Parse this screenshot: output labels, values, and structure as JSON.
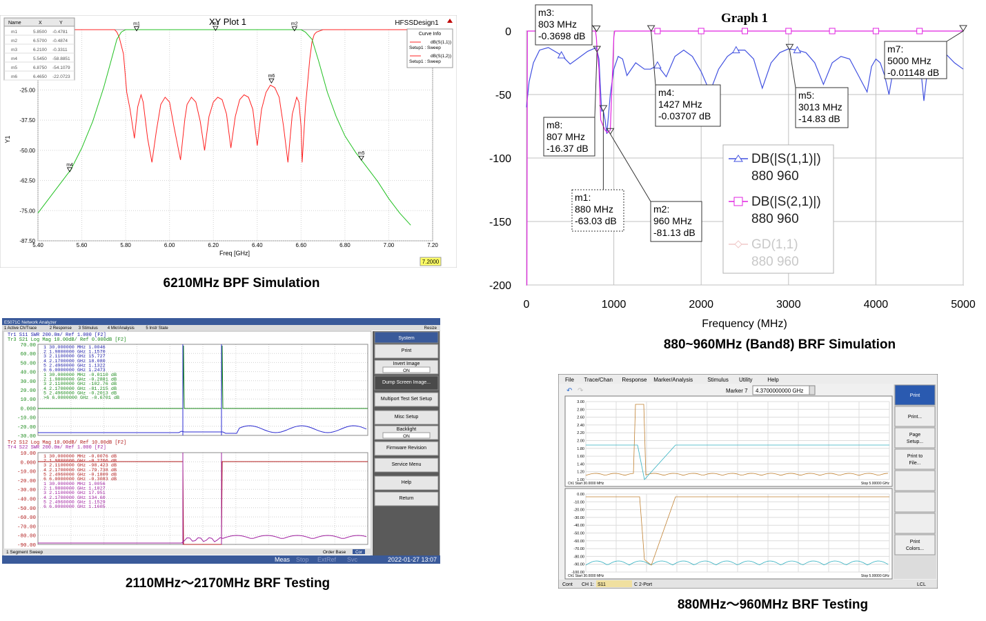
{
  "captions": {
    "p1": "6210MHz BPF Simulation",
    "p2": "880~960MHz (Band8) BRF Simulation",
    "p3": "2110MHz～2170MHz BRF Testing",
    "p4": "880MHz～960MHz BRF Testing"
  },
  "chart_data": [
    {
      "type": "line",
      "title": "XY Plot 1",
      "design": "HFSSDesign1",
      "xlabel": "Freq [GHz]",
      "ylabel": "Y1",
      "xlim": [
        5.4,
        7.2
      ],
      "ylim": [
        -87.5,
        0
      ],
      "xticks": [
        "5.40",
        "5.60",
        "5.80",
        "6.00",
        "6.20",
        "6.40",
        "6.60",
        "6.80",
        "7.00",
        "7.20"
      ],
      "yticks": [
        "-25.00",
        "-37.50",
        "-50.00",
        "-62.50",
        "-75.00",
        "-87.50"
      ],
      "cursor_value": "7.2000",
      "legend_title": "Curve Info",
      "series": [
        {
          "name": "dB(S(1,1))",
          "setup": "Setup1 : Sweep",
          "color": "#ff2020",
          "x": [
            5.4,
            5.75,
            5.76,
            5.77,
            5.79,
            5.805,
            5.82,
            5.84,
            5.855,
            5.87,
            5.88,
            5.9,
            5.92,
            5.94,
            5.96,
            5.98,
            6.0,
            6.02,
            6.05,
            6.07,
            6.08,
            6.1,
            6.12,
            6.14,
            6.16,
            6.18,
            6.2,
            6.22,
            6.24,
            6.26,
            6.28,
            6.3,
            6.32,
            6.34,
            6.36,
            6.38,
            6.4,
            6.42,
            6.44,
            6.46,
            6.48,
            6.5,
            6.52,
            6.54,
            6.56,
            6.58,
            6.59,
            6.6,
            6.605,
            6.62,
            6.64,
            6.65,
            6.66,
            6.67,
            6.7,
            7.1
          ],
          "y": [
            0,
            0,
            -1,
            -3,
            -10,
            -26,
            -33,
            -45,
            -32,
            -27,
            -30,
            -45,
            -55,
            -42,
            -31,
            -28,
            -30,
            -40,
            -54,
            -37,
            -31,
            -28,
            -30,
            -38,
            -50,
            -36,
            -30,
            -28,
            -29,
            -35,
            -49,
            -36,
            -29,
            -27,
            -28,
            -33,
            -48,
            -33,
            -26,
            -23,
            -24,
            -28,
            -40,
            -55,
            -35,
            -28,
            -30,
            -40,
            -55,
            -32,
            -12,
            -5,
            -2,
            -1,
            0,
            0
          ]
        },
        {
          "name": "dB(S(1,2))",
          "setup": "Setup1 : Sweep",
          "color": "#20c020",
          "x": [
            5.4,
            5.45,
            5.5,
            5.55,
            5.6,
            5.65,
            5.7,
            5.73,
            5.76,
            5.78,
            5.8,
            6.6,
            6.62,
            6.65,
            6.68,
            6.72,
            6.76,
            6.8,
            6.85,
            6.9,
            6.95,
            7.0,
            7.05,
            7.1
          ],
          "y": [
            -76,
            -70,
            -64,
            -58,
            -49,
            -38,
            -24,
            -14,
            -4,
            -1,
            0,
            0,
            -1,
            -4,
            -13,
            -26,
            -36,
            -44,
            -51,
            -57,
            -63,
            -70,
            -76,
            -81
          ]
        }
      ],
      "markers": [
        {
          "name": "m1",
          "x": "5.8500",
          "y": "-0.4781",
          "xv": 5.85,
          "yv": -0.48
        },
        {
          "name": "m2",
          "x": "6.5700",
          "y": "-0.4874",
          "xv": 6.57,
          "yv": -0.49
        },
        {
          "name": "m3",
          "x": "6.2100",
          "y": "-0.3311",
          "xv": 6.21,
          "yv": -0.33
        },
        {
          "name": "m4",
          "x": "5.5450",
          "y": "-58.8851",
          "xv": 5.545,
          "yv": -58.89
        },
        {
          "name": "m5",
          "x": "6.8750",
          "y": "-54.1079",
          "xv": 6.875,
          "yv": -54.11
        },
        {
          "name": "m6",
          "x": "6.4650",
          "y": "-22.0723",
          "xv": 6.465,
          "yv": -22.07
        }
      ],
      "marker_table_headers": [
        "Name",
        "X",
        "Y"
      ]
    },
    {
      "type": "line",
      "title": "Graph 1",
      "xlabel": "Frequency (MHz)",
      "ylabel": "",
      "xlim": [
        0,
        5000
      ],
      "ylim": [
        -200,
        0
      ],
      "xticks": [
        "0",
        "1000",
        "2000",
        "3000",
        "4000",
        "5000"
      ],
      "yticks": [
        "0",
        "-50",
        "-100",
        "-150",
        "-200"
      ],
      "series": [
        {
          "name": "DB(|S(1,1)|)",
          "sub": "880 960",
          "color": "#4050e0",
          "x": [
            0,
            30,
            80,
            150,
            250,
            400,
            500,
            600,
            700,
            800,
            830,
            860,
            880,
            900,
            920,
            960,
            1000,
            1050,
            1100,
            1150,
            1250,
            1350,
            1420,
            1500,
            1600,
            1700,
            1800,
            1900,
            2000,
            2100,
            2200,
            2300,
            2400,
            2500,
            2600,
            2700,
            2800,
            2900,
            3000,
            3100,
            3200,
            3300,
            3400,
            3500,
            3600,
            3700,
            3800,
            3900,
            3950,
            4000,
            4050,
            4100,
            4150,
            4200,
            4300,
            4400,
            4500,
            4550,
            4600,
            4700,
            4800,
            4900,
            5000
          ],
          "y": [
            -60,
            -40,
            -25,
            -15,
            -13,
            -19,
            -26,
            -21,
            -16,
            -13,
            -22,
            -63,
            -63,
            -70,
            -81,
            -50,
            -30,
            -20,
            -22,
            -35,
            -25,
            -30,
            -30,
            -27,
            -36,
            -20,
            -15,
            -20,
            -32,
            -48,
            -30,
            -20,
            -15,
            -15,
            -22,
            -45,
            -25,
            -17,
            -14,
            -15,
            -17,
            -25,
            -42,
            -25,
            -20,
            -22,
            -35,
            -48,
            -28,
            -22,
            -25,
            -35,
            -50,
            -30,
            -20,
            -17,
            -20,
            -55,
            -25,
            -15,
            -18,
            -25,
            -30
          ]
        },
        {
          "name": "DB(|S(2,1)|)",
          "sub": "880 960",
          "color": "#e020e0",
          "x": [
            0,
            5,
            10,
            790,
            800,
            810,
            830,
            850,
            880,
            900,
            930,
            960,
            1000,
            1010,
            5000
          ],
          "y": [
            -200,
            -200,
            0,
            0,
            -5,
            -16,
            -30,
            -70,
            -75,
            -78,
            -80,
            -78,
            -5,
            0,
            0
          ]
        },
        {
          "name": "GD(1,1)",
          "sub": "880 960",
          "color": "#f0c8c8",
          "x": [],
          "y": []
        }
      ],
      "markers": [
        {
          "name": "m3",
          "lines": [
            "m3:",
            "803 MHz",
            "-0.3698 dB"
          ],
          "xv": 803,
          "yv": -0.37
        },
        {
          "name": "m8",
          "lines": [
            "m8:",
            "807 MHz",
            "-16.37 dB"
          ],
          "xv": 807,
          "yv": -16.37
        },
        {
          "name": "m1",
          "lines": [
            "m1:",
            "880 MHz",
            "-63.03 dB"
          ],
          "xv": 880,
          "yv": -63.03
        },
        {
          "name": "m2",
          "lines": [
            "m2:",
            "960 MHz",
            "-81.13 dB"
          ],
          "xv": 960,
          "yv": -81.13
        },
        {
          "name": "m4",
          "lines": [
            "m4:",
            "1427 MHz",
            "-0.03707 dB"
          ],
          "xv": 1427,
          "yv": -0.04
        },
        {
          "name": "m5",
          "lines": [
            "m5:",
            "3013 MHz",
            "-14.83 dB"
          ],
          "xv": 3013,
          "yv": -14.83
        },
        {
          "name": "m7",
          "lines": [
            "m7:",
            "5000 MHz",
            "-0.01148 dB"
          ],
          "xv": 5000,
          "yv": -0.01
        }
      ]
    },
    {
      "type": "line",
      "title": "E5071C Network Analyzer",
      "menubar": [
        "1 Active Ch/Trace",
        "2 Response",
        "3 Stimulus",
        "4 Mkr/Analysis",
        "5 Instr State"
      ],
      "resize": "Resize",
      "top_trace_lines": [
        "Tr1  S11  SWR 200.0m/ Ref 1.000 [F2]",
        "Tr3  S21  Log Mag 10.00dB/ Ref 0.000dB [F2]"
      ],
      "top_yticks": [
        "70.00",
        "60.00",
        "50.00",
        "40.00",
        "30.00",
        "20.00",
        "10.00",
        "0.000",
        "-10.00",
        "-20.00",
        "-30.00"
      ],
      "top_marker_rows_swr": [
        "1   30.000000 MHz   1.0046",
        "2   1.9800000 GHz   1.1570",
        "3   2.1100000 GHz   15.727",
        "4   2.1700000 GHz   18.080",
        "5   2.4960000 GHz   1.1322",
        "6   6.0000000 GHz   1.2473"
      ],
      "top_marker_rows_db": [
        "1   30.000000 MHz  -0.0110 dB",
        "2   1.9800000 GHz  -0.2881 dB",
        "3   2.1100000 GHz  -102.76 dB",
        "4   2.1700000 GHz  -81.215 dB",
        "5   2.4960000 GHz  -0.2013 dB",
        ">6   6.0000000 GHz  -0.6701 dB"
      ],
      "bottom_trace_lines": [
        "Tr2  S12  Log Mag 10.00dB/ Ref 10.00dB [F2]",
        "Tr4  S22  SWR 200.0m/ Ref 1.000 [F2]"
      ],
      "bottom_yticks": [
        "10.00",
        "0.000",
        "-10.00",
        "-20.00",
        "-30.00",
        "-40.00",
        "-50.00",
        "-60.00",
        "-70.00",
        "-80.00",
        "-90.00"
      ],
      "bottom_marker_rows_db": [
        "1   30.000000 MHz  -0.0076 dB",
        "2   1.9800000 GHz  -0.2766 dB",
        "3   2.1100000 GHz  -98.423 dB",
        "4   2.1700000 GHz  -79.738 dB",
        "5   2.4960000 GHz  -0.1809 dB",
        "6   6.0000000 GHz  -0.3083 dB"
      ],
      "bottom_marker_rows_swr": [
        "1   30.000000 MHz   1.0056",
        "2   1.9800000 GHz   1.1827",
        "3   2.1100000 GHz   17.951",
        "4   2.1700000 GHz   134.60",
        "5   2.4960000 GHz   1.1529",
        "6   6.0000000 GHz   1.1605"
      ],
      "softkeys": [
        {
          "label": "System",
          "sub": ""
        },
        {
          "label": "Print",
          "sub": ""
        },
        {
          "label": "Invert Image",
          "sub": "ON"
        },
        {
          "label": "Dump Screen Image...",
          "sub": ""
        },
        {
          "label": "Multiport Test Set Setup",
          "sub": ""
        },
        {
          "label": "Misc Setup",
          "sub": ""
        },
        {
          "label": "Backlight",
          "sub": "ON"
        },
        {
          "label": "Firmware Revision",
          "sub": ""
        },
        {
          "label": "Service Menu",
          "sub": ""
        },
        {
          "label": "Help",
          "sub": ""
        },
        {
          "label": "Return",
          "sub": ""
        }
      ],
      "status_left": "1  Segment Sweep",
      "status_right": "Order Base",
      "status_cor": "Cor",
      "status_bar": [
        "Meas",
        "Stop",
        "ExtRef",
        "Svc"
      ],
      "timestamp": "2022-01-27 13:07"
    },
    {
      "type": "line",
      "title": "",
      "menubar": [
        "File",
        "Trace/Chan",
        "Response",
        "Marker/Analysis",
        "Stimulus",
        "Utility",
        "Help"
      ],
      "marker_label": "Marker 7",
      "marker_value": "4.3700000000 GHz",
      "softkeys": [
        "Print",
        "Print...",
        "Page Setup...",
        "Print to File...",
        "",
        "",
        "",
        "Print Colors..."
      ],
      "top_yticks": [
        "3.00",
        "2.80",
        "2.60",
        "2.40",
        "2.20",
        "2.00",
        "1.80",
        "1.60",
        "1.40",
        "1.20",
        "1.00"
      ],
      "bottom_yticks": [
        "0.00",
        "-10.00",
        "-20.00",
        "-30.00",
        "-40.00",
        "-50.00",
        "-60.00",
        "-70.00",
        "-80.00",
        "-90.00",
        "-100.00"
      ],
      "top_start": "Ch1  Start 30.0000 MHz",
      "top_stop": "Stop 5.00000 GHz",
      "bottom_start": "Ch1  Start 30.0000 MHz",
      "bottom_stop": "Stop 5.00000 GHz",
      "status": [
        "Cont",
        "CH 1:",
        "S11",
        "C 2-Port",
        "LCL"
      ]
    }
  ]
}
